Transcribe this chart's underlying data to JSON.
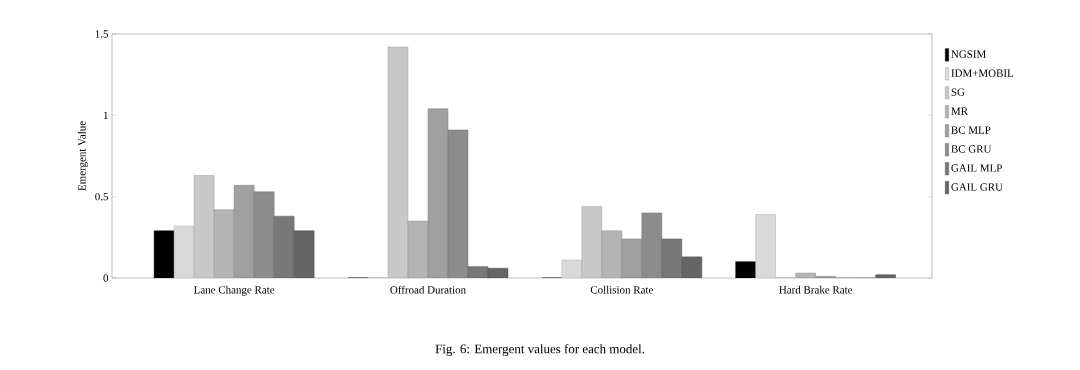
{
  "chart_data": {
    "type": "bar",
    "ylabel": "Emergent Value",
    "categories": [
      "Lane Change Rate",
      "Offroad Duration",
      "Collision Rate",
      "Hard Brake Rate"
    ],
    "series": [
      {
        "name": "NGSIM",
        "color": "#000000",
        "values": [
          0.29,
          0,
          0,
          0.1
        ]
      },
      {
        "name": "IDM+MOBIL",
        "color": "#d9d9d9",
        "values": [
          0.32,
          0,
          0.11,
          0.39
        ]
      },
      {
        "name": "SG",
        "color": "#c8c8c8",
        "values": [
          0.63,
          1.42,
          0.44,
          0
        ]
      },
      {
        "name": "MR",
        "color": "#b4b4b4",
        "values": [
          0.42,
          0.35,
          0.29,
          0.03
        ]
      },
      {
        "name": "BC MLP",
        "color": "#a0a0a0",
        "values": [
          0.57,
          1.04,
          0.24,
          0.01
        ]
      },
      {
        "name": "BC GRU",
        "color": "#8c8c8c",
        "values": [
          0.53,
          0.91,
          0.4,
          0
        ]
      },
      {
        "name": "GAIL MLP",
        "color": "#787878",
        "values": [
          0.38,
          0.07,
          0.24,
          0
        ]
      },
      {
        "name": "GAIL GRU",
        "color": "#646464",
        "values": [
          0.29,
          0.06,
          0.13,
          0.02
        ]
      }
    ],
    "ylim": [
      0,
      1.5
    ],
    "yticks": [
      0,
      0.5,
      1,
      1.5
    ],
    "legend": "right",
    "annotations": [
      "Fig. 6: Emergent values for each model."
    ]
  }
}
